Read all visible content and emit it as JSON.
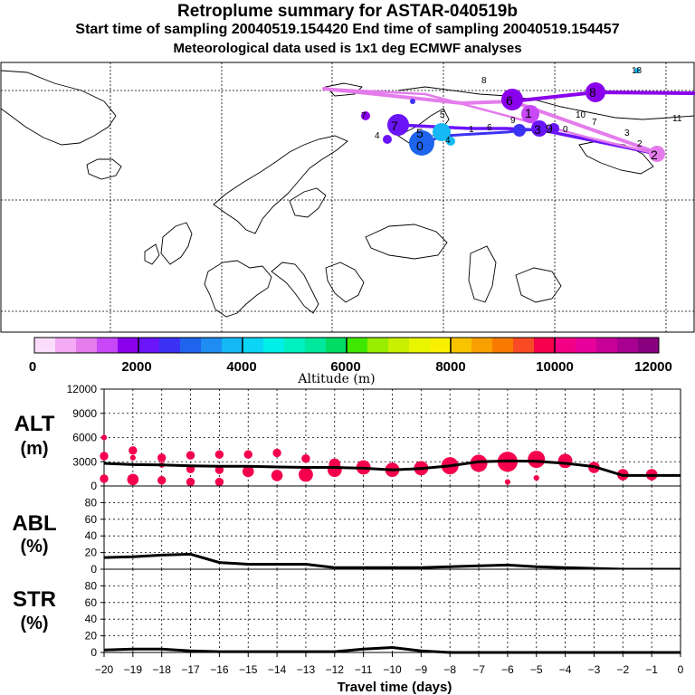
{
  "header": {
    "title": "Retroplume summary for ASTAR-040519b",
    "sampling": "Start time of sampling 20040519.154420      End time of sampling 20040519.154457",
    "met_data": "Meteorological data used is 1x1 deg ECMWF analyses"
  },
  "colorbar": {
    "label": "Altitude (m)",
    "ticks": [
      "0",
      "2000",
      "4000",
      "6000",
      "8000",
      "10000",
      "12000"
    ],
    "colors": [
      "#fbdcfb",
      "#f4aaf4",
      "#e47cec",
      "#c848f8",
      "#8a00ec",
      "#6a14f8",
      "#3c32f4",
      "#1e64ec",
      "#1e8cf0",
      "#14b8f4",
      "#0cd4f4",
      "#00f0e8",
      "#00f0c0",
      "#00e89c",
      "#00dc64",
      "#40e800",
      "#98ec00",
      "#c8f000",
      "#e8f400",
      "#f8f000",
      "#f8c400",
      "#f8a000",
      "#f87a00",
      "#f84a24",
      "#f4004c",
      "#f40084",
      "#e8009c",
      "#c80098",
      "#a80090",
      "#880080"
    ]
  },
  "map": {
    "point_labels": [
      "8",
      "11",
      "10",
      "7",
      "3",
      "2",
      "6",
      "9",
      "5",
      "4",
      "4",
      "7",
      "1",
      "18",
      "0"
    ],
    "highlight_labels": [
      "7",
      "5",
      "0",
      "1",
      "3",
      "9",
      "8",
      "2",
      "6"
    ]
  },
  "chart_data": [
    {
      "type": "line",
      "panel": "ALT",
      "ylabel": "ALT (m)",
      "yticks": [
        0,
        3000,
        6000,
        9000,
        12000
      ],
      "ytick_labels": [
        "0",
        "3000",
        "6000",
        "9000",
        "12000"
      ],
      "ylim": [
        0,
        12000
      ],
      "x": [
        -20,
        -19,
        -18,
        -17,
        -16,
        -15,
        -14,
        -13,
        -12,
        -11,
        -10,
        -9,
        -8,
        -7,
        -6,
        -5,
        -4,
        -3,
        -2,
        -1,
        0
      ],
      "mean_altitude": [
        2800,
        2650,
        2600,
        2500,
        2450,
        2450,
        2350,
        2300,
        2300,
        2200,
        2000,
        2150,
        2500,
        3000,
        3100,
        3050,
        2800,
        2400,
        1300,
        1300,
        1300
      ],
      "clusters": [
        {
          "x": -20,
          "y": 6000,
          "size": 1
        },
        {
          "x": -20,
          "y": 3700,
          "size": 2
        },
        {
          "x": -20,
          "y": 900,
          "size": 2
        },
        {
          "x": -19,
          "y": 4400,
          "size": 2
        },
        {
          "x": -19,
          "y": 3500,
          "size": 1
        },
        {
          "x": -19,
          "y": 800,
          "size": 3
        },
        {
          "x": -18,
          "y": 3500,
          "size": 2
        },
        {
          "x": -18,
          "y": 2600,
          "size": 1
        },
        {
          "x": -18,
          "y": 700,
          "size": 2
        },
        {
          "x": -17,
          "y": 3800,
          "size": 2
        },
        {
          "x": -17,
          "y": 2100,
          "size": 2
        },
        {
          "x": -17,
          "y": 500,
          "size": 2
        },
        {
          "x": -16,
          "y": 3900,
          "size": 2
        },
        {
          "x": -16,
          "y": 2000,
          "size": 2
        },
        {
          "x": -16,
          "y": 500,
          "size": 2
        },
        {
          "x": -15,
          "y": 3900,
          "size": 2
        },
        {
          "x": -15,
          "y": 1800,
          "size": 3
        },
        {
          "x": -14,
          "y": 4100,
          "size": 2
        },
        {
          "x": -14,
          "y": 1300,
          "size": 3
        },
        {
          "x": -13,
          "y": 3400,
          "size": 2
        },
        {
          "x": -13,
          "y": 1400,
          "size": 4
        },
        {
          "x": -12,
          "y": 2000,
          "size": 4
        },
        {
          "x": -12,
          "y": 2700,
          "size": 3
        },
        {
          "x": -11,
          "y": 2300,
          "size": 4
        },
        {
          "x": -10,
          "y": 2000,
          "size": 4
        },
        {
          "x": -9,
          "y": 2200,
          "size": 4
        },
        {
          "x": -8,
          "y": 2500,
          "size": 5
        },
        {
          "x": -7,
          "y": 2800,
          "size": 5
        },
        {
          "x": -6,
          "y": 3000,
          "size": 6
        },
        {
          "x": -6,
          "y": 500,
          "size": 1
        },
        {
          "x": -5,
          "y": 3300,
          "size": 5
        },
        {
          "x": -5,
          "y": 1000,
          "size": 1
        },
        {
          "x": -4,
          "y": 3100,
          "size": 4
        },
        {
          "x": -3,
          "y": 2300,
          "size": 3
        },
        {
          "x": -2,
          "y": 1400,
          "size": 3
        },
        {
          "x": -1,
          "y": 1400,
          "size": 3
        }
      ]
    },
    {
      "type": "line",
      "panel": "ABL",
      "ylabel": "ABL (%)",
      "yticks": [
        0,
        20,
        40,
        60,
        80
      ],
      "ytick_labels": [
        "0",
        "20",
        "40",
        "60",
        "80"
      ],
      "ylim": [
        0,
        100
      ],
      "x": [
        -20,
        -19,
        -18,
        -17,
        -16,
        -15,
        -14,
        -13,
        -12,
        -11,
        -10,
        -9,
        -8,
        -7,
        -6,
        -5,
        -4,
        -3,
        -2,
        -1,
        0
      ],
      "values": [
        14,
        15,
        17,
        18,
        8,
        6,
        6,
        6,
        2,
        2,
        2,
        2,
        3,
        4,
        5,
        3,
        2,
        1,
        0,
        0,
        0
      ]
    },
    {
      "type": "line",
      "panel": "STR",
      "ylabel": "STR (%)",
      "yticks": [
        0,
        20,
        40,
        60,
        80
      ],
      "ytick_labels": [
        "0",
        "20",
        "40",
        "60",
        "80"
      ],
      "ylim": [
        0,
        100
      ],
      "x": [
        -20,
        -19,
        -18,
        -17,
        -16,
        -15,
        -14,
        -13,
        -12,
        -11,
        -10,
        -9,
        -8,
        -7,
        -6,
        -5,
        -4,
        -3,
        -2,
        -1,
        0
      ],
      "values": [
        3,
        4,
        4,
        2,
        1,
        1,
        1,
        1,
        1,
        4,
        6,
        2,
        0,
        0,
        0,
        0,
        0,
        0,
        0,
        0,
        0
      ]
    }
  ],
  "xaxis": {
    "label": "Travel time (days)",
    "ticks": [
      "−20",
      "−19",
      "−18",
      "−17",
      "−16",
      "−15",
      "−14",
      "−13",
      "−12",
      "−11",
      "−10",
      "−9",
      "−8",
      "−7",
      "−6",
      "−5",
      "−4",
      "−3",
      "−2",
      "−1",
      "0"
    ]
  },
  "panel_labels": {
    "alt": [
      "ALT",
      "(m)"
    ],
    "abl": [
      "ABL",
      "(%)"
    ],
    "str": [
      "STR",
      "(%)"
    ]
  }
}
